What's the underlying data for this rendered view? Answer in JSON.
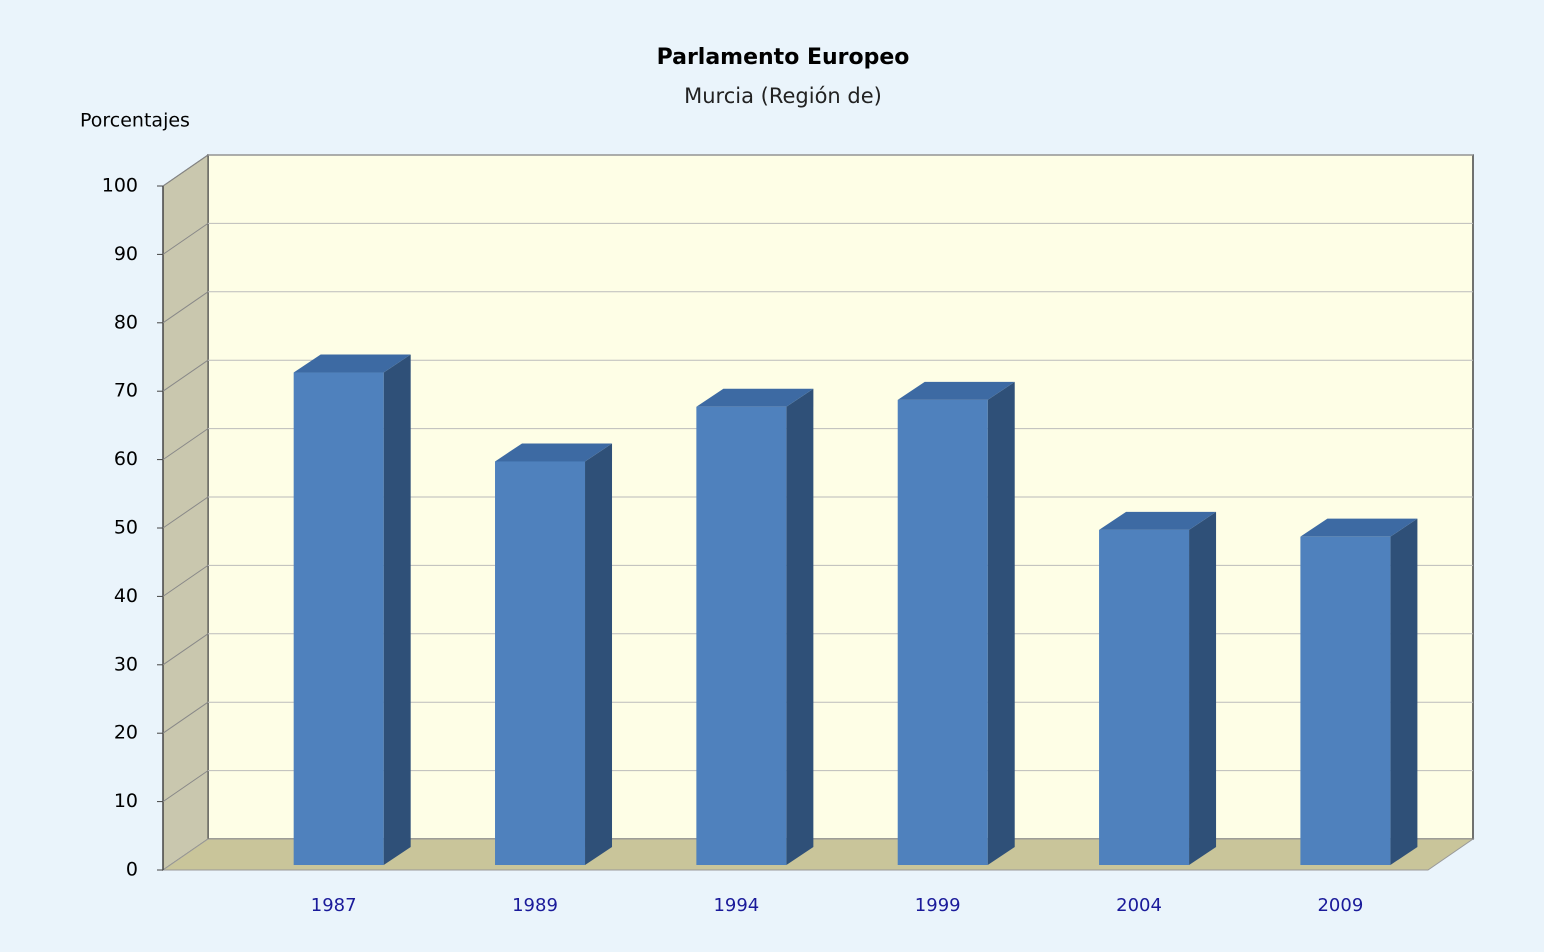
{
  "chart_data": {
    "type": "bar3d",
    "title": "Parlamento Europeo",
    "subtitle": "Murcia (Región de)",
    "y_label": "Porcentajes",
    "categories": [
      "1987",
      "1989",
      "1994",
      "1999",
      "2004",
      "2009"
    ],
    "values": [
      72,
      59,
      67,
      68,
      49,
      48
    ],
    "color": "#4f81bd",
    "ylim": [
      0,
      100
    ],
    "yticks": [
      0,
      10,
      20,
      30,
      40,
      50,
      60,
      70,
      80,
      90,
      100
    ],
    "grid": true
  }
}
